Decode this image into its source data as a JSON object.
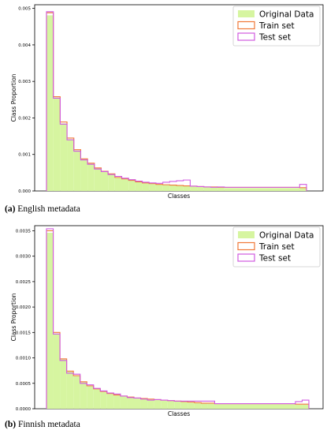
{
  "captions": [
    {
      "letter": "(a)",
      "text": "English metadata"
    },
    {
      "letter": "(b)",
      "text": "Finnish metadata"
    }
  ],
  "colors": {
    "original_fill": "#d6f5a0",
    "train_edge": "#f07838",
    "test_edge": "#d05ae0",
    "axis": "#000000"
  },
  "chart_data": [
    {
      "type": "histogram",
      "title": "",
      "xlabel": "Classes",
      "ylabel": "Class Proportion",
      "ylim": [
        0,
        0.0051
      ],
      "yticks": [
        0.0,
        0.001,
        0.002,
        0.003,
        0.004,
        0.005
      ],
      "ytick_labels": [
        "0.000",
        "0.001",
        "0.002",
        "0.003",
        "0.004",
        "0.005"
      ],
      "legend_position": "top-right",
      "legend": [
        "Original Data",
        "Train set",
        "Test set"
      ],
      "bin_widths": [
        1,
        1,
        1,
        1,
        1,
        1,
        1,
        1,
        1,
        1,
        1,
        1,
        1,
        1,
        1,
        1,
        1,
        1,
        1,
        1,
        1,
        1,
        1,
        1,
        1,
        1,
        11,
        1
      ],
      "series": [
        {
          "name": "Original Data",
          "style": "filled",
          "values": [
            0.00481,
            0.00256,
            0.00185,
            0.00142,
            0.00111,
            0.00086,
            0.00074,
            0.00062,
            0.00052,
            0.00046,
            0.00036,
            0.00032,
            0.00028,
            0.00024,
            0.00021,
            0.00019,
            0.00017,
            0.00016,
            0.00015,
            0.00014,
            0.00013,
            0.00012,
            0.00011,
            0.00011,
            0.0001,
            0.0001,
            8e-05,
            8e-05
          ]
        },
        {
          "name": "Train set",
          "style": "step",
          "values": [
            0.00488,
            0.00258,
            0.00189,
            0.00145,
            0.00113,
            0.00088,
            0.00076,
            0.00063,
            0.00054,
            0.00047,
            0.00037,
            0.00033,
            0.00029,
            0.00025,
            0.00022,
            0.0002,
            0.00018,
            0.00017,
            0.00016,
            0.00015,
            0.00014,
            0.00013,
            0.00012,
            0.00011,
            0.00011,
            0.0001,
            0.0001,
            9e-05
          ]
        },
        {
          "name": "Test set",
          "style": "step",
          "values": [
            0.00491,
            0.00254,
            0.00183,
            0.0014,
            0.00109,
            0.00085,
            0.00073,
            0.0006,
            0.00053,
            0.00045,
            0.0004,
            0.00035,
            0.00031,
            0.00027,
            0.00024,
            0.00022,
            0.00021,
            0.00024,
            0.00026,
            0.00028,
            0.0003,
            0.00013,
            0.00012,
            0.00011,
            0.0001,
            0.00011,
            0.0001,
            0.00018
          ]
        }
      ]
    },
    {
      "type": "histogram",
      "title": "",
      "xlabel": "Classes",
      "ylabel": "Class Proportion",
      "ylim": [
        0,
        0.0036
      ],
      "yticks": [
        0.0,
        0.0005,
        0.001,
        0.0015,
        0.002,
        0.0025,
        0.003,
        0.0035
      ],
      "ytick_labels": [
        "0.0000",
        "0.0005",
        "0.0010",
        "0.0015",
        "0.0020",
        "0.0025",
        "0.0030",
        "0.0035"
      ],
      "legend_position": "top-right",
      "legend": [
        "Original Data",
        "Train set",
        "Test set"
      ],
      "bin_widths": [
        1,
        1,
        1,
        1,
        1,
        1,
        1,
        1,
        1,
        1,
        1,
        1,
        1,
        1,
        1,
        1,
        1,
        1,
        1,
        1,
        1,
        1,
        1,
        1,
        1,
        12,
        1,
        1
      ],
      "series": [
        {
          "name": "Original Data",
          "style": "filled",
          "values": [
            0.00346,
            0.00148,
            0.00097,
            0.00073,
            0.00064,
            0.00052,
            0.00044,
            0.00038,
            0.00033,
            0.00029,
            0.00026,
            0.00024,
            0.00022,
            0.0002,
            0.00019,
            0.00018,
            0.00017,
            0.00016,
            0.00015,
            0.00014,
            0.00013,
            0.00012,
            0.00011,
            0.00011,
            0.0001,
            9e-05,
            8e-05,
            8e-05
          ]
        },
        {
          "name": "Train set",
          "style": "step",
          "values": [
            0.0035,
            0.0015,
            0.00098,
            0.00074,
            0.00065,
            0.00053,
            0.00045,
            0.00039,
            0.00034,
            0.0003,
            0.00027,
            0.00025,
            0.00023,
            0.00021,
            0.0002,
            0.00019,
            0.00018,
            0.00017,
            0.00016,
            0.00015,
            0.00014,
            0.00013,
            0.00012,
            0.00011,
            0.00011,
            0.0001,
            9e-05,
            9e-05
          ]
        },
        {
          "name": "Test set",
          "style": "step",
          "values": [
            0.00354,
            0.00147,
            0.00095,
            0.0007,
            0.00068,
            0.0005,
            0.00047,
            0.0004,
            0.00035,
            0.00031,
            0.00029,
            0.00025,
            0.00022,
            0.00021,
            0.00019,
            0.00017,
            0.00018,
            0.00017,
            0.00016,
            0.00015,
            0.00015,
            0.00015,
            0.00015,
            0.00015,
            0.00015,
            0.0001,
            0.00014,
            0.00017
          ]
        }
      ]
    }
  ]
}
